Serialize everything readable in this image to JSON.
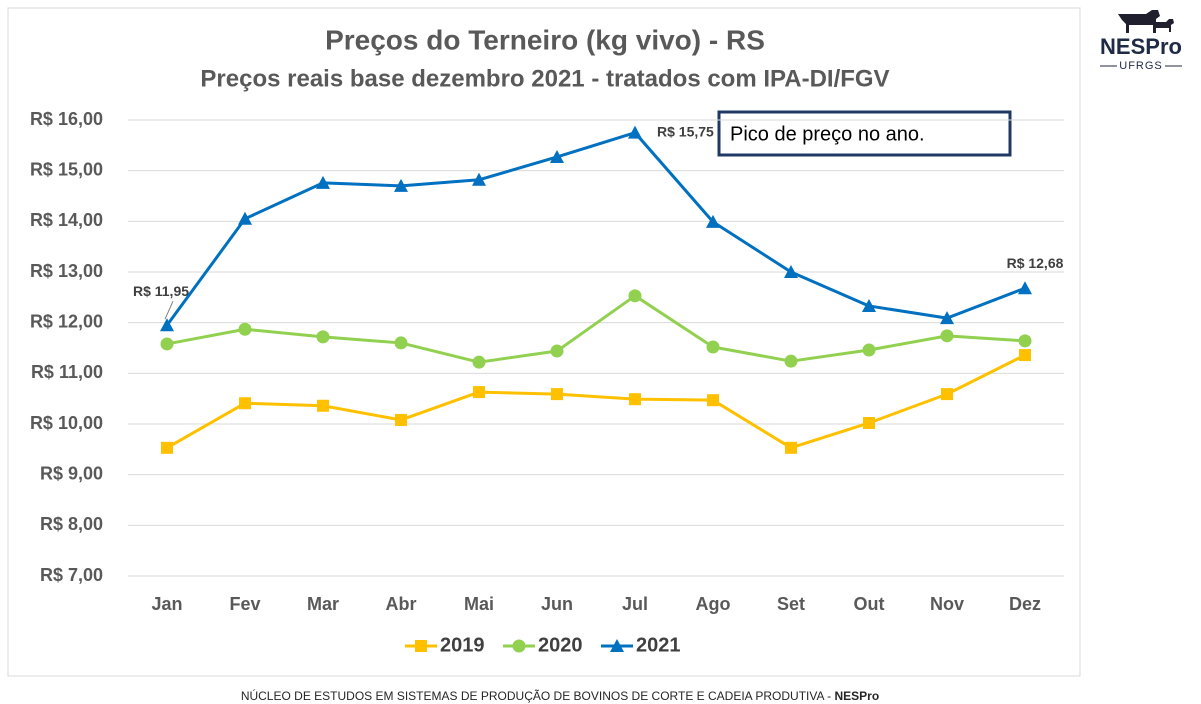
{
  "chart_data": {
    "type": "line",
    "title": "Preços do Terneiro (kg vivo) - RS",
    "subtitle": "Preços reais base dezembro 2021 - tratados com IPA-DI/FGV",
    "categories": [
      "Jan",
      "Fev",
      "Mar",
      "Abr",
      "Mai",
      "Jun",
      "Jul",
      "Ago",
      "Set",
      "Out",
      "Nov",
      "Dez"
    ],
    "series": [
      {
        "name": "2019",
        "color": "#FFC000",
        "marker": "square",
        "values": [
          9.53,
          10.41,
          10.36,
          10.08,
          10.63,
          10.59,
          10.49,
          10.47,
          9.53,
          10.02,
          10.59,
          11.36
        ]
      },
      {
        "name": "2020",
        "color": "#92D050",
        "marker": "circle",
        "values": [
          11.58,
          11.87,
          11.72,
          11.6,
          11.22,
          11.44,
          12.53,
          11.52,
          11.24,
          11.46,
          11.74,
          11.64
        ]
      },
      {
        "name": "2021",
        "color": "#0070C0",
        "marker": "triangle",
        "values": [
          11.95,
          14.05,
          14.76,
          14.7,
          14.82,
          15.27,
          15.75,
          13.99,
          13.0,
          12.33,
          12.09,
          12.68
        ],
        "value_labels": [
          "R$ 11,95",
          null,
          null,
          null,
          null,
          null,
          "R$ 15,75",
          null,
          null,
          null,
          null,
          "R$ 12,68"
        ]
      }
    ],
    "ylim": [
      7,
      16
    ],
    "yticks": [
      {
        "value": 7,
        "label": "R$ 7,00"
      },
      {
        "value": 8,
        "label": "R$ 8,00"
      },
      {
        "value": 9,
        "label": "R$ 9,00"
      },
      {
        "value": 10,
        "label": "R$ 10,00"
      },
      {
        "value": 11,
        "label": "R$ 11,00"
      },
      {
        "value": 12,
        "label": "R$ 12,00"
      },
      {
        "value": 13,
        "label": "R$ 13,00"
      },
      {
        "value": 14,
        "label": "R$ 14,00"
      },
      {
        "value": 15,
        "label": "R$ 15,00"
      },
      {
        "value": 16,
        "label": "R$ 16,00"
      }
    ],
    "grid": true,
    "legend": "bottom",
    "annotation": "Pico de preço no ano."
  },
  "logo": {
    "name": "NESPro",
    "sub": "UFRGS"
  },
  "footer": {
    "text": "NÚCLEO DE ESTUDOS EM SISTEMAS DE PRODUÇÃO DE BOVINOS DE CORTE E CADEIA PRODUTIVA - ",
    "bold": "NESPro"
  }
}
